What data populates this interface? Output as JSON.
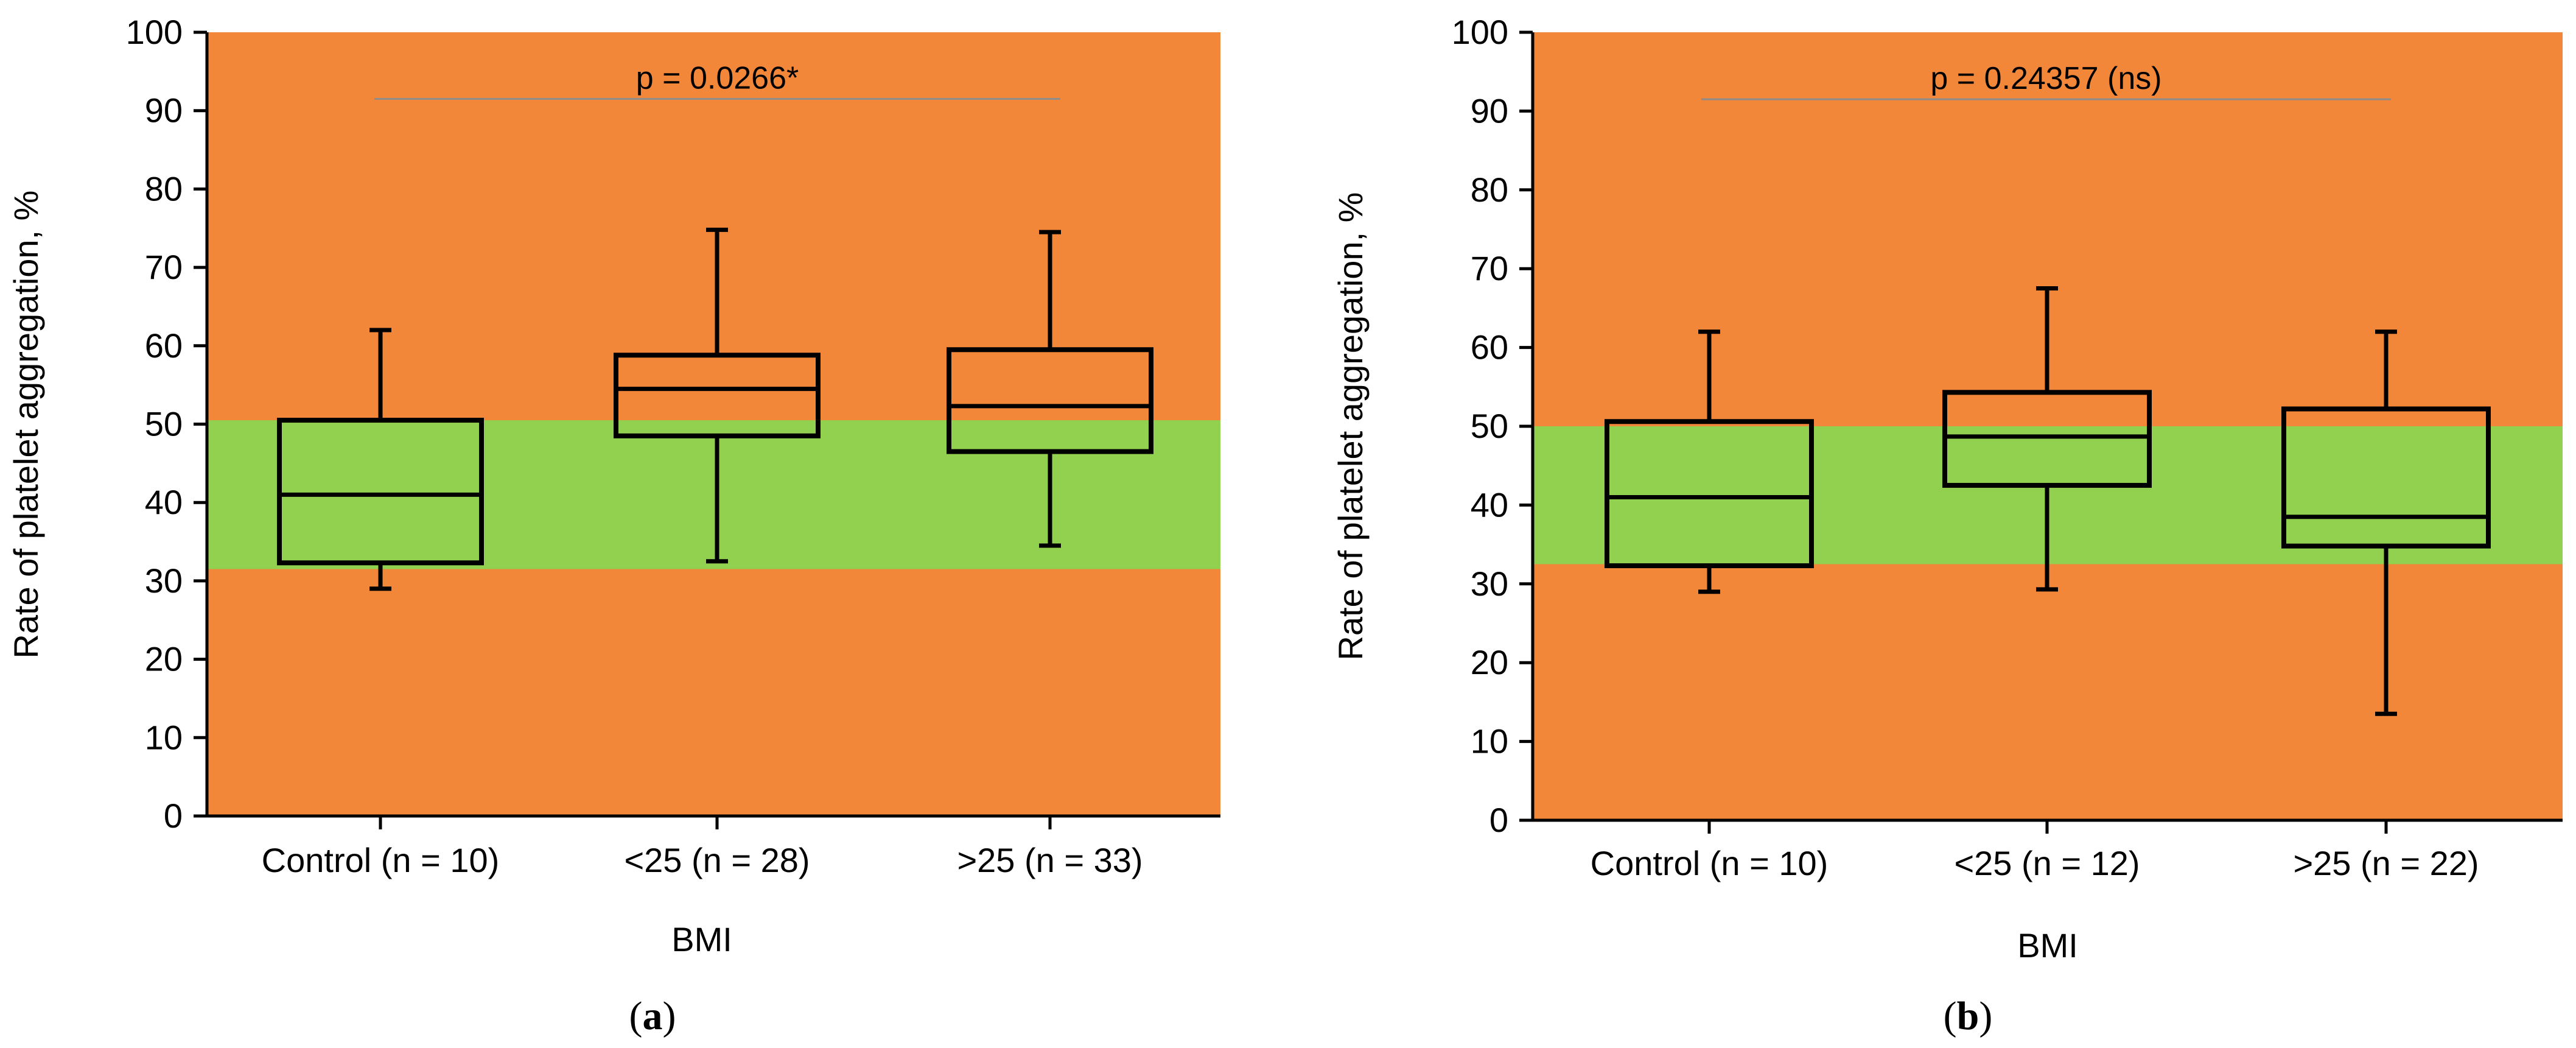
{
  "colors": {
    "out_of_range_band": "#F28739",
    "normal_range_band": "#92D050",
    "box_stroke": "#000000",
    "sig_line": "#8C8C8C"
  },
  "chart_data": [
    {
      "type": "boxplot",
      "panel_label": "a",
      "title": "",
      "xlabel": "BMI",
      "ylabel": "Rate of platelet aggregation, %",
      "ylim": [
        0,
        100
      ],
      "yticks": [
        "0",
        "10",
        "20",
        "30",
        "40",
        "50",
        "60",
        "70",
        "80",
        "90",
        "100"
      ],
      "categories": [
        "Control (n = 10)",
        "<25 (n = 28)",
        ">25 (n = 33)"
      ],
      "normal_band": [
        31.5,
        50.5
      ],
      "boxes": [
        {
          "min": 29,
          "q1": 32.3,
          "median": 41,
          "q3": 50.5,
          "max": 62
        },
        {
          "min": 32.5,
          "q1": 48.5,
          "median": 54.5,
          "q3": 58.8,
          "max": 74.8
        },
        {
          "min": 34.5,
          "q1": 46.5,
          "median": 52.3,
          "q3": 59.5,
          "max": 74.5
        }
      ],
      "annotation": {
        "text": "p = 0.0266*",
        "y": 91.5
      }
    },
    {
      "type": "boxplot",
      "panel_label": "b",
      "title": "",
      "xlabel": "BMI",
      "ylabel": "Rate of platelet aggregation, %",
      "ylim": [
        0,
        100
      ],
      "yticks": [
        "0",
        "10",
        "20",
        "30",
        "40",
        "50",
        "60",
        "70",
        "80",
        "90",
        "100"
      ],
      "categories": [
        "Control (n = 10)",
        "<25 (n = 12)",
        ">25 (n = 22)"
      ],
      "normal_band": [
        32.5,
        50.0
      ],
      "boxes": [
        {
          "min": 29,
          "q1": 32.3,
          "median": 41,
          "q3": 50.6,
          "max": 62
        },
        {
          "min": 29.3,
          "q1": 42.5,
          "median": 48.7,
          "q3": 54.3,
          "max": 67.5
        },
        {
          "min": 13.5,
          "q1": 34.8,
          "median": 38.5,
          "q3": 52.2,
          "max": 62
        }
      ],
      "annotation": {
        "text": "p = 0.24357 (ns)",
        "y": 91.5
      }
    }
  ]
}
